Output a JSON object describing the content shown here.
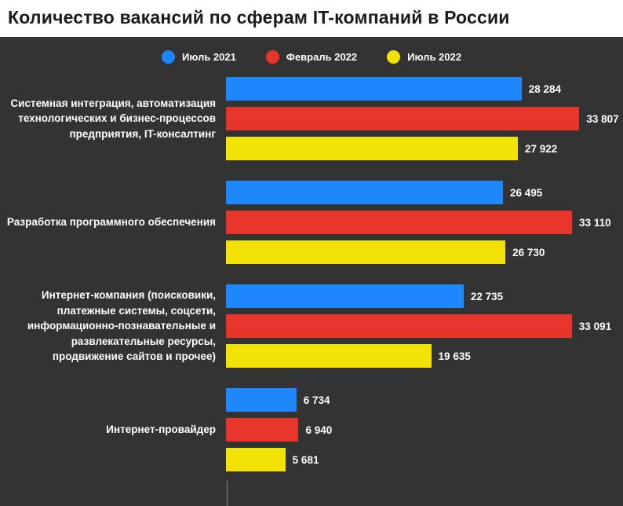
{
  "title": "Количество вакансий по сферам IT-компаний в России",
  "legend": [
    {
      "label": "Июль 2021",
      "color": "#1f87fc"
    },
    {
      "label": "Февраль 2022",
      "color": "#e7352c"
    },
    {
      "label": "Июль 2022",
      "color": "#f2e205"
    }
  ],
  "chart_data": {
    "type": "bar",
    "orientation": "horizontal",
    "title": "Количество вакансий по сферам IT-компаний в России",
    "xlabel": "",
    "ylabel": "",
    "xlim": [
      0,
      34000
    ],
    "grid": false,
    "legend_position": "top-center",
    "background_color": "#333333",
    "categories": [
      "Системная интеграция, автоматизация технологических и бизнес-процессов предприятия, IT-консалтинг",
      "Разработка программного обеспечения",
      "Интернет-компания (поисковики, платежные системы, соцсети, информационно-познавательные и развлекательные ресурсы, продвижение сайтов и прочее)",
      "Интернет-провайдер"
    ],
    "series": [
      {
        "name": "Июль 2021",
        "color": "#1f87fc",
        "values": [
          28284,
          26495,
          22735,
          6734
        ],
        "value_labels": [
          "28 284",
          "26 495",
          "22 735",
          "6 734"
        ]
      },
      {
        "name": "Февраль 2022",
        "color": "#e7352c",
        "values": [
          33807,
          33110,
          33091,
          6940
        ],
        "value_labels": [
          "33 807",
          "33 110",
          "33 091",
          "6 940"
        ]
      },
      {
        "name": "Июль 2022",
        "color": "#f2e205",
        "values": [
          27922,
          26730,
          19635,
          5681
        ],
        "value_labels": [
          "27 922",
          "26 730",
          "19 635",
          "5 681"
        ]
      }
    ]
  }
}
